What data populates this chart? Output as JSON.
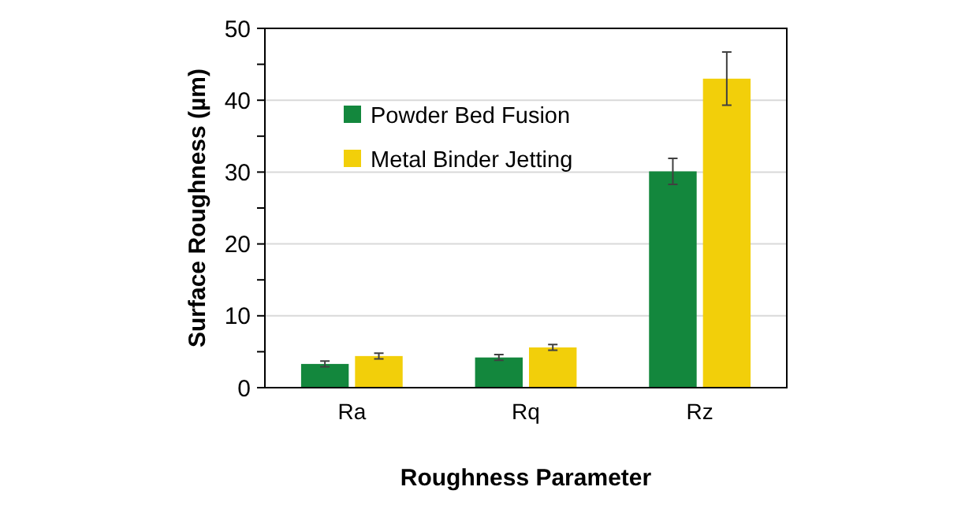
{
  "chart_data": {
    "type": "bar",
    "xlabel": "Roughness Parameter",
    "ylabel": "Surface Roughness (µm)",
    "categories": [
      "Ra",
      "Rq",
      "Rz"
    ],
    "series": [
      {
        "name": "Powder Bed Fusion",
        "color": "#13873d",
        "values": [
          3.3,
          4.2,
          30.1
        ],
        "errors": [
          0.4,
          0.4,
          1.8
        ]
      },
      {
        "name": "Metal Binder Jetting",
        "color": "#f2cf0a",
        "values": [
          4.4,
          5.6,
          43
        ],
        "errors": [
          0.4,
          0.4,
          3.7
        ]
      }
    ],
    "ylim": [
      0,
      50
    ],
    "yticks": [
      0,
      {
        "value": 5,
        "label": null
      },
      10,
      {
        "value": 15,
        "label": null
      },
      20,
      {
        "value": 25,
        "label": null
      },
      30,
      {
        "value": 35,
        "label": null
      },
      40,
      {
        "value": 45,
        "label": null
      },
      50
    ],
    "grid": "y",
    "legend": "top left"
  }
}
